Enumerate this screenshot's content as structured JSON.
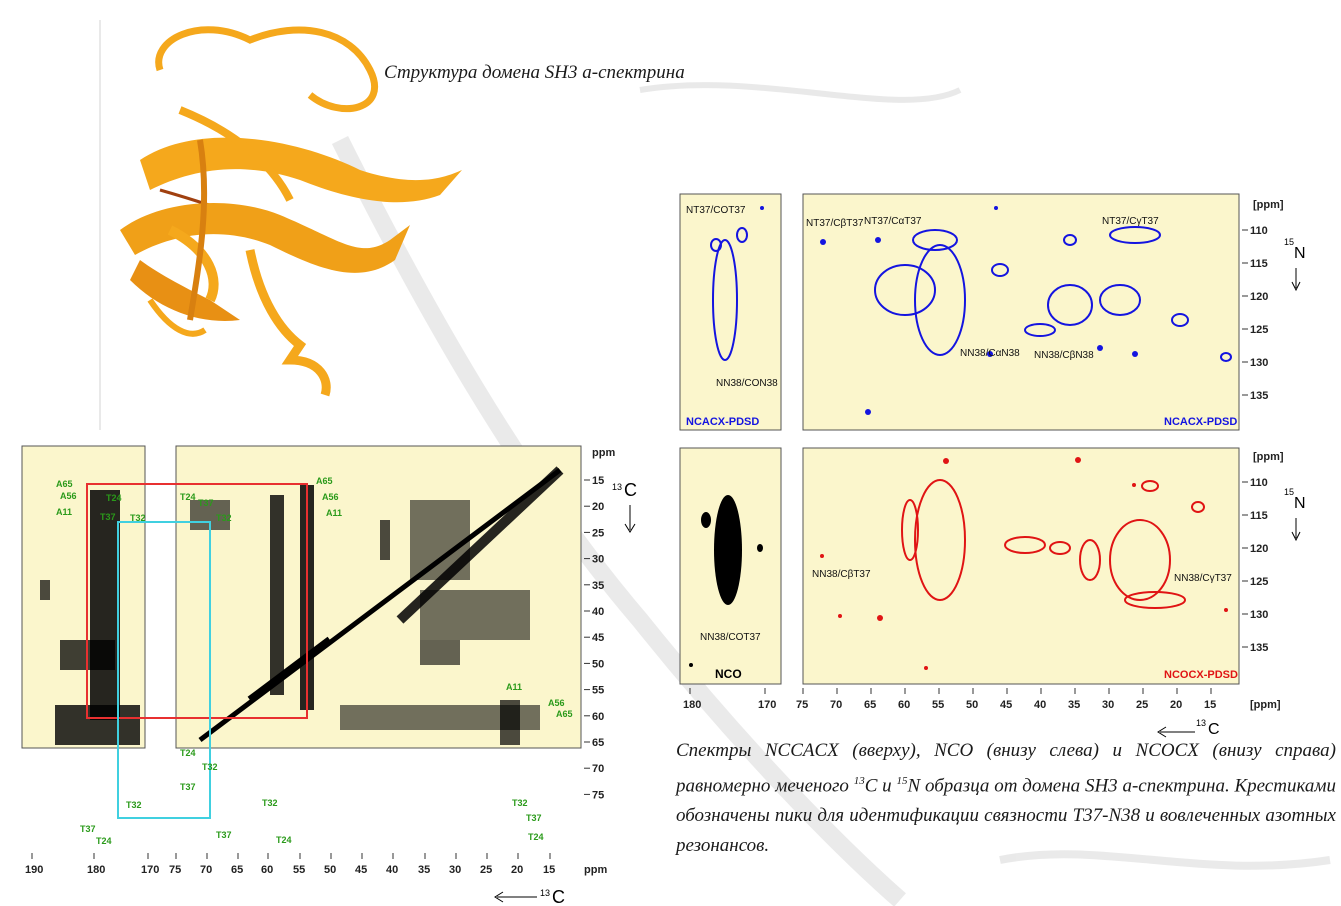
{
  "captions": {
    "structure": "Структура домена SH3 а-спектрина",
    "spectra_prefix": "Спектры NCCACX (вверху), NCO (внизу слева) и NCOCX (внизу справа) равномерно меченого ",
    "spectra_c": "C и ",
    "spectra_n": "N образца от домена SH3 а-спектрина. Крестиками обозначены пики для идентификации связности T37-N38 и вовлеченных азотных резонансов.",
    "sup13": "13",
    "sup15": "15"
  },
  "panel_labels": {
    "ncacx_left": "NCACX-PDSD",
    "ncacx_right": "NCACX-PDSD",
    "nco": "NCO",
    "ncocx": "NCOCX-PDSD"
  },
  "axes": {
    "ppm": "ppm",
    "ppm_bracket": "[ppm]",
    "c13": "C",
    "n15": "N",
    "iso13": "13",
    "iso15": "15",
    "left_x_ticks": [
      "190",
      "180",
      "170",
      "75",
      "70",
      "65",
      "60",
      "55",
      "50",
      "45",
      "40",
      "35",
      "30",
      "25",
      "20",
      "15"
    ],
    "left_y_ticks": [
      "15",
      "20",
      "25",
      "30",
      "35",
      "40",
      "45",
      "50",
      "55",
      "60",
      "65",
      "70",
      "75"
    ],
    "right_x_ticks": [
      "180",
      "170",
      "75",
      "70",
      "65",
      "60",
      "55",
      "50",
      "45",
      "40",
      "35",
      "30",
      "25",
      "20",
      "15"
    ],
    "right_y_ticks": [
      "110",
      "115",
      "120",
      "125",
      "130",
      "135"
    ]
  },
  "peak_labels": {
    "a65": "A65",
    "a56": "A56",
    "a11": "A11",
    "t24": "T24",
    "t37": "T37",
    "t32": "T32",
    "n_t37_co": "NT37/COT37",
    "n_n38_co": "NN38/CON38",
    "n_t37_cb": "NT37/CβT37",
    "n_t37_ca": "NT37/CαT37",
    "n_t37_cg": "NT37/CγT37",
    "n_n38_ca": "NN38/CαN38",
    "n_n38_cb": "NN38/CβN38",
    "n_n38_cbt37": "NN38/CβT37",
    "n_n38_cgt37": "NN38/CγT37",
    "n_n38_cot37": "NN38/COT37"
  },
  "colors": {
    "panel_bg": "#fbf6cc",
    "blue_peaks": "#1414e0",
    "red_peaks": "#e01414",
    "black_peaks": "#000000",
    "red_box": "#e83030",
    "cyan_box": "#40d0e0",
    "green_labels": "#2a9a1a",
    "protein": "#f5a81c"
  }
}
